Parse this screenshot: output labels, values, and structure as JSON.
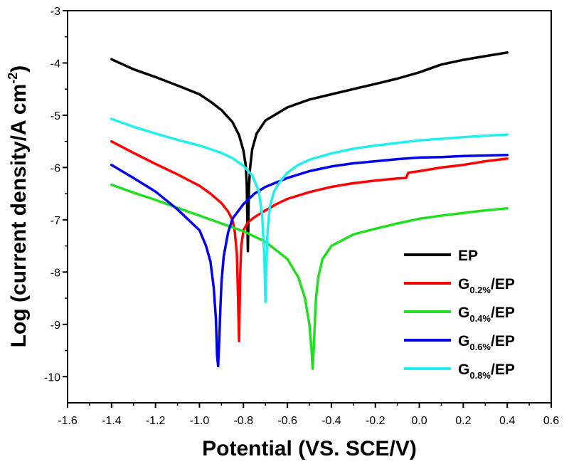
{
  "chart_data": {
    "type": "line",
    "title": "",
    "xlabel": "Potential (VS. SCE/V)",
    "ylabel_main": "Log (current density/A cm",
    "ylabel_sup": "-2",
    "ylabel_close": ")",
    "xlim": [
      -1.6,
      0.6
    ],
    "ylim": [
      -10.5,
      -3
    ],
    "x_ticks": [
      -1.6,
      -1.4,
      -1.2,
      -1.0,
      -0.8,
      -0.6,
      -0.4,
      -0.2,
      0.0,
      0.2,
      0.4,
      0.6
    ],
    "x_tick_labels": [
      "-1.6",
      "-1.4",
      "-1.2",
      "-1.0",
      "-0.8",
      "-0.6",
      "-0.4",
      "-0.2",
      "0.0",
      "0.2",
      "0.4",
      "0.6"
    ],
    "y_ticks": [
      -10,
      -9,
      -8,
      -7,
      -6,
      -5,
      -4,
      -3
    ],
    "y_tick_labels": [
      "-10",
      "-9",
      "-8",
      "-7",
      "-6",
      "-5",
      "-4",
      "-3"
    ],
    "grid": false,
    "legend_position": "bottom-right",
    "series": [
      {
        "name": "EP",
        "name_main": "EP",
        "name_sub": "",
        "name_suffix": "",
        "color": "#000000",
        "x": [
          -1.4,
          -1.3,
          -1.2,
          -1.1,
          -1.0,
          -0.95,
          -0.9,
          -0.85,
          -0.82,
          -0.8,
          -0.79,
          -0.785,
          -0.78,
          -0.775,
          -0.77,
          -0.76,
          -0.74,
          -0.7,
          -0.6,
          -0.5,
          -0.4,
          -0.3,
          -0.2,
          -0.1,
          0.0,
          0.1,
          0.2,
          0.3,
          0.4
        ],
        "y": [
          -3.93,
          -4.12,
          -4.27,
          -4.43,
          -4.6,
          -4.74,
          -4.9,
          -5.13,
          -5.38,
          -5.68,
          -5.95,
          -6.3,
          -7.6,
          -6.4,
          -6.02,
          -5.65,
          -5.35,
          -5.1,
          -4.85,
          -4.7,
          -4.6,
          -4.5,
          -4.4,
          -4.3,
          -4.18,
          -4.03,
          -3.94,
          -3.87,
          -3.8
        ]
      },
      {
        "name": "G0.2%/EP",
        "name_main": "G",
        "name_sub": "0.2%",
        "name_suffix": "/EP",
        "color": "#ff0000",
        "x": [
          -1.4,
          -1.3,
          -1.2,
          -1.1,
          -1.0,
          -0.95,
          -0.9,
          -0.87,
          -0.85,
          -0.84,
          -0.83,
          -0.825,
          -0.82,
          -0.815,
          -0.81,
          -0.8,
          -0.78,
          -0.75,
          -0.7,
          -0.65,
          -0.6,
          -0.5,
          -0.4,
          -0.3,
          -0.2,
          -0.1,
          -0.06,
          -0.05,
          0.0,
          0.1,
          0.2,
          0.3,
          0.4
        ],
        "y": [
          -5.5,
          -5.72,
          -5.93,
          -6.13,
          -6.35,
          -6.5,
          -6.68,
          -6.84,
          -7.0,
          -7.2,
          -7.65,
          -8.4,
          -9.32,
          -8.1,
          -7.5,
          -7.2,
          -7.05,
          -6.95,
          -6.82,
          -6.7,
          -6.6,
          -6.47,
          -6.37,
          -6.3,
          -6.25,
          -6.21,
          -6.2,
          -6.1,
          -6.07,
          -6.0,
          -5.95,
          -5.88,
          -5.83
        ]
      },
      {
        "name": "G0.4%/EP",
        "name_main": "G",
        "name_sub": "0.4%",
        "name_suffix": "/EP",
        "color": "#22dd22",
        "x": [
          -1.4,
          -1.3,
          -1.2,
          -1.1,
          -1.0,
          -0.9,
          -0.8,
          -0.7,
          -0.6,
          -0.55,
          -0.52,
          -0.5,
          -0.49,
          -0.485,
          -0.48,
          -0.475,
          -0.47,
          -0.46,
          -0.44,
          -0.4,
          -0.3,
          -0.2,
          -0.1,
          0.0,
          0.1,
          0.2,
          0.3,
          0.4
        ],
        "y": [
          -6.33,
          -6.48,
          -6.62,
          -6.77,
          -6.92,
          -7.07,
          -7.22,
          -7.42,
          -7.75,
          -8.1,
          -8.5,
          -9.0,
          -9.5,
          -9.85,
          -9.45,
          -8.95,
          -8.5,
          -8.1,
          -7.75,
          -7.5,
          -7.28,
          -7.17,
          -7.07,
          -6.98,
          -6.92,
          -6.87,
          -6.82,
          -6.78
        ]
      },
      {
        "name": "G0.6%/EP",
        "name_main": "G",
        "name_sub": "0.6%",
        "name_suffix": "/EP",
        "color": "#0000ee",
        "x": [
          -1.4,
          -1.3,
          -1.2,
          -1.1,
          -1.0,
          -0.97,
          -0.95,
          -0.935,
          -0.925,
          -0.92,
          -0.915,
          -0.91,
          -0.905,
          -0.9,
          -0.89,
          -0.87,
          -0.85,
          -0.8,
          -0.75,
          -0.7,
          -0.6,
          -0.5,
          -0.4,
          -0.3,
          -0.2,
          -0.1,
          0.0,
          0.1,
          0.2,
          0.3,
          0.4
        ],
        "y": [
          -5.95,
          -6.2,
          -6.46,
          -6.8,
          -7.2,
          -7.5,
          -7.8,
          -8.3,
          -8.9,
          -9.6,
          -9.8,
          -9.3,
          -8.7,
          -8.2,
          -7.7,
          -7.25,
          -6.98,
          -6.7,
          -6.5,
          -6.37,
          -6.2,
          -6.07,
          -5.98,
          -5.92,
          -5.88,
          -5.84,
          -5.81,
          -5.8,
          -5.78,
          -5.77,
          -5.76
        ]
      },
      {
        "name": "G0.8%/EP",
        "name_main": "G",
        "name_sub": "0.8%",
        "name_suffix": "/EP",
        "color": "#22eeee",
        "x": [
          -1.4,
          -1.3,
          -1.2,
          -1.1,
          -1.0,
          -0.9,
          -0.85,
          -0.8,
          -0.76,
          -0.73,
          -0.715,
          -0.705,
          -0.7,
          -0.695,
          -0.69,
          -0.68,
          -0.66,
          -0.63,
          -0.6,
          -0.55,
          -0.5,
          -0.4,
          -0.3,
          -0.2,
          -0.1,
          0.0,
          0.1,
          0.2,
          0.3,
          0.4
        ],
        "y": [
          -5.07,
          -5.22,
          -5.35,
          -5.47,
          -5.58,
          -5.72,
          -5.82,
          -5.97,
          -6.15,
          -6.45,
          -6.9,
          -7.7,
          -8.57,
          -7.8,
          -7.2,
          -6.75,
          -6.45,
          -6.25,
          -6.1,
          -5.95,
          -5.85,
          -5.73,
          -5.64,
          -5.58,
          -5.53,
          -5.48,
          -5.45,
          -5.42,
          -5.39,
          -5.37
        ]
      }
    ]
  }
}
